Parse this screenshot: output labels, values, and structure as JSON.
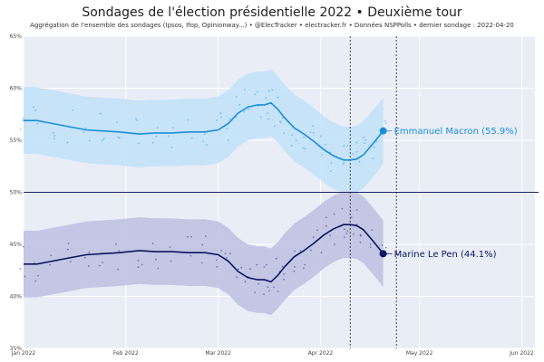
{
  "chart_data": {
    "type": "line",
    "title": "Sondages de l'élection présidentielle 2022 • Deuxième tour",
    "subtitle": "Aggrégation de l'ensemble des sondages (Ipsos, Ifop, Opinionway...) • @ElecTracker • electracker.fr • Données NSPPolls • dernier sondage : 2022-04-20",
    "xlabel": "",
    "ylabel": "",
    "x_range": [
      "2022-01-01",
      "2022-06-05"
    ],
    "ylim": [
      35,
      65
    ],
    "x_ticks": [
      {
        "date": "2022-01-01",
        "label": "Jan 2022"
      },
      {
        "date": "2022-02-01",
        "label": "Feb 2022"
      },
      {
        "date": "2022-03-01",
        "label": "Mar 2022"
      },
      {
        "date": "2022-04-01",
        "label": "Apr 2022"
      },
      {
        "date": "2022-05-01",
        "label": "May 2022"
      },
      {
        "date": "2022-06-01",
        "label": "Jun 2022"
      }
    ],
    "y_ticks": [
      {
        "value": 35,
        "label": "35%"
      },
      {
        "value": 40,
        "label": "40%"
      },
      {
        "value": 45,
        "label": "45%"
      },
      {
        "value": 50,
        "label": "50%"
      },
      {
        "value": 55,
        "label": "55%"
      },
      {
        "value": 60,
        "label": "60%"
      },
      {
        "value": 65,
        "label": "65%"
      }
    ],
    "reference_line": {
      "value": 50,
      "color": "#1b2a6b"
    },
    "vertical_markers": [
      "2022-04-10",
      "2022-04-24"
    ],
    "grid": true,
    "series": [
      {
        "name": "Emmanuel Macron",
        "label": "Emmanuel Macron (55.9%)",
        "color": "#1a8fd6",
        "band_color": "#bfe0f8",
        "band_width": 3.2,
        "last": {
          "date": "2022-04-20",
          "value": 55.9
        },
        "x": [
          "2022-01-01",
          "2022-01-05",
          "2022-01-10",
          "2022-01-15",
          "2022-01-20",
          "2022-01-25",
          "2022-01-30",
          "2022-02-05",
          "2022-02-10",
          "2022-02-15",
          "2022-02-20",
          "2022-02-25",
          "2022-03-01",
          "2022-03-04",
          "2022-03-07",
          "2022-03-10",
          "2022-03-13",
          "2022-03-15",
          "2022-03-17",
          "2022-03-19",
          "2022-03-21",
          "2022-03-24",
          "2022-03-27",
          "2022-03-30",
          "2022-04-02",
          "2022-04-05",
          "2022-04-08",
          "2022-04-10",
          "2022-04-12",
          "2022-04-14",
          "2022-04-17",
          "2022-04-20"
        ],
        "values": [
          56.9,
          56.9,
          56.6,
          56.3,
          56.0,
          55.9,
          55.8,
          55.6,
          55.7,
          55.7,
          55.8,
          55.8,
          56.0,
          56.6,
          57.6,
          58.2,
          58.4,
          58.4,
          58.6,
          58.0,
          57.2,
          56.2,
          55.6,
          54.9,
          54.1,
          53.5,
          53.1,
          53.1,
          53.2,
          53.6,
          54.7,
          55.9
        ]
      },
      {
        "name": "Marine Le Pen",
        "label": "Marine Le Pen (44.1%)",
        "color": "#0b1560",
        "band_color": "#bcc0e0",
        "band_width": 3.2,
        "last": {
          "date": "2022-04-20",
          "value": 44.1
        },
        "x": [
          "2022-01-01",
          "2022-01-05",
          "2022-01-10",
          "2022-01-15",
          "2022-01-20",
          "2022-01-25",
          "2022-01-30",
          "2022-02-05",
          "2022-02-10",
          "2022-02-15",
          "2022-02-20",
          "2022-02-25",
          "2022-03-01",
          "2022-03-04",
          "2022-03-07",
          "2022-03-10",
          "2022-03-13",
          "2022-03-15",
          "2022-03-17",
          "2022-03-19",
          "2022-03-21",
          "2022-03-24",
          "2022-03-27",
          "2022-03-30",
          "2022-04-02",
          "2022-04-05",
          "2022-04-08",
          "2022-04-10",
          "2022-04-12",
          "2022-04-14",
          "2022-04-17",
          "2022-04-20"
        ],
        "values": [
          43.1,
          43.1,
          43.4,
          43.7,
          44.0,
          44.1,
          44.2,
          44.4,
          44.3,
          44.3,
          44.2,
          44.2,
          44.0,
          43.4,
          42.4,
          41.8,
          41.6,
          41.6,
          41.4,
          42.0,
          42.8,
          43.8,
          44.4,
          45.1,
          45.9,
          46.5,
          46.9,
          46.9,
          46.8,
          46.4,
          45.3,
          44.1
        ]
      }
    ]
  }
}
